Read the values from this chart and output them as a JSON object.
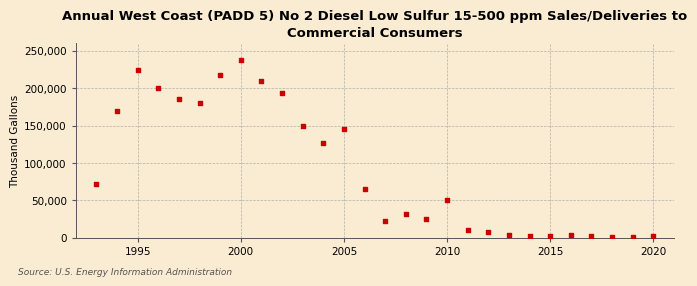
{
  "title": "Annual West Coast (PADD 5) No 2 Diesel Low Sulfur 15-500 ppm Sales/Deliveries to\nCommercial Consumers",
  "ylabel": "Thousand Gallons",
  "source": "Source: U.S. Energy Information Administration",
  "background_color": "#faecd2",
  "marker_color": "#cc0000",
  "years": [
    1993,
    1994,
    1995,
    1996,
    1997,
    1998,
    1999,
    2000,
    2001,
    2002,
    2003,
    2004,
    2005,
    2006,
    2007,
    2008,
    2009,
    2010,
    2011,
    2012,
    2013,
    2014,
    2015,
    2016,
    2017,
    2018,
    2019,
    2020
  ],
  "values": [
    72000,
    170000,
    224000,
    200000,
    185000,
    180000,
    218000,
    237000,
    210000,
    193000,
    149000,
    127000,
    145000,
    65000,
    22000,
    32000,
    25000,
    50000,
    10000,
    8000,
    4000,
    2000,
    2000,
    4000,
    2000,
    1000,
    1000,
    2000
  ],
  "xlim": [
    1992,
    2021
  ],
  "ylim": [
    0,
    260000
  ],
  "yticks": [
    0,
    50000,
    100000,
    150000,
    200000,
    250000
  ],
  "xticks": [
    1995,
    2000,
    2005,
    2010,
    2015,
    2020
  ],
  "title_fontsize": 9.5,
  "label_fontsize": 7.5,
  "tick_fontsize": 7.5,
  "source_fontsize": 6.5
}
